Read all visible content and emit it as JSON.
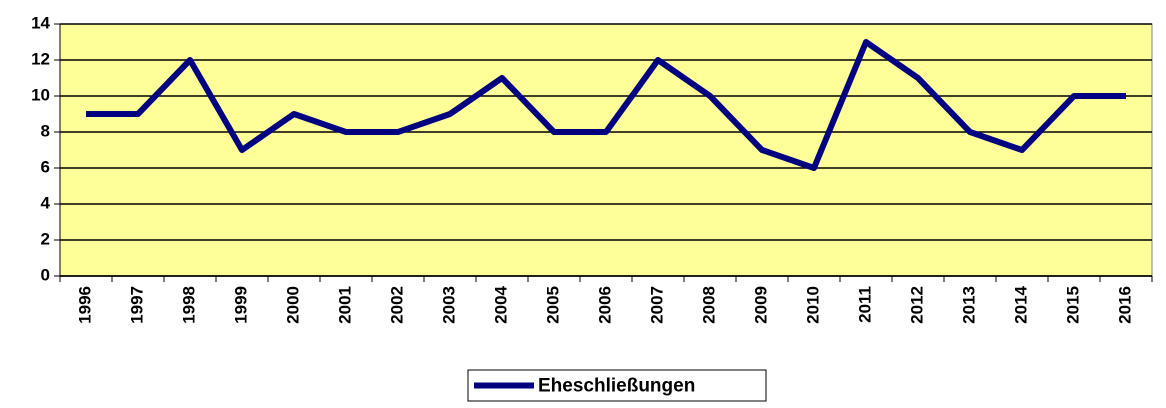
{
  "chart_data": {
    "type": "line",
    "categories": [
      "1996",
      "1997",
      "1998",
      "1999",
      "2000",
      "2001",
      "2002",
      "2003",
      "2004",
      "2005",
      "2006",
      "2007",
      "2008",
      "2009",
      "2010",
      "2011",
      "2012",
      "2013",
      "2014",
      "2015",
      "2016"
    ],
    "series": [
      {
        "name": "Eheschließungen",
        "color": "#000080",
        "values": [
          9,
          9,
          12,
          7,
          9,
          8,
          8,
          9,
          11,
          8,
          8,
          12,
          10,
          7,
          6,
          13,
          11,
          8,
          7,
          10,
          10
        ]
      }
    ],
    "ylim": [
      0,
      14
    ],
    "yticks": [
      0,
      2,
      4,
      6,
      8,
      10,
      12,
      14
    ],
    "grid": true,
    "plot_background": "#ffff99",
    "legend": "bottom"
  }
}
